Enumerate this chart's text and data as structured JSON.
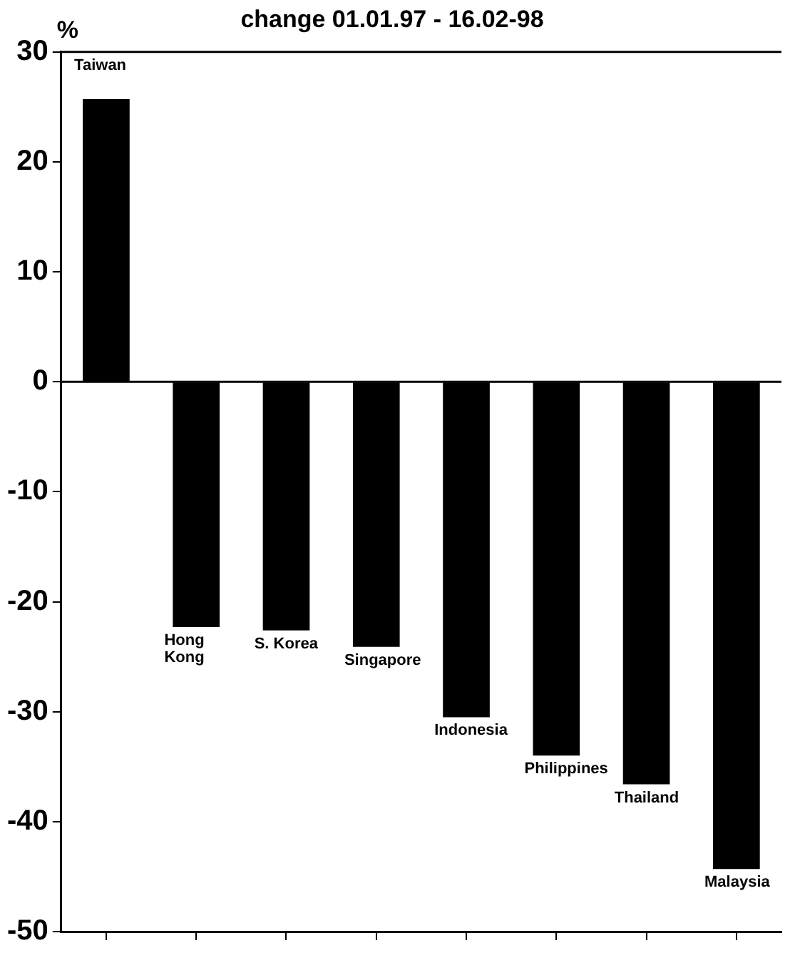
{
  "chart_data": {
    "type": "bar",
    "title": "change 01.01.97 - 16.02-98",
    "ylabel": "%",
    "categories": [
      "Taiwan",
      "Hong Kong",
      "S. Korea",
      "Singapore",
      "Indonesia",
      "Philippines",
      "Thailand",
      "Malaysia"
    ],
    "values": [
      25.7,
      -22.3,
      -22.6,
      -24.1,
      -30.5,
      -34.0,
      -36.6,
      -44.3
    ],
    "color": "#000000",
    "ylim": [
      -50,
      30
    ],
    "yticks": [
      -50,
      -40,
      -30,
      -20,
      -10,
      0,
      10,
      20,
      30
    ],
    "ref_lines": [
      {
        "axis": "y",
        "value": 0
      }
    ],
    "grid": false,
    "legend": false,
    "tick_labels": "y"
  }
}
